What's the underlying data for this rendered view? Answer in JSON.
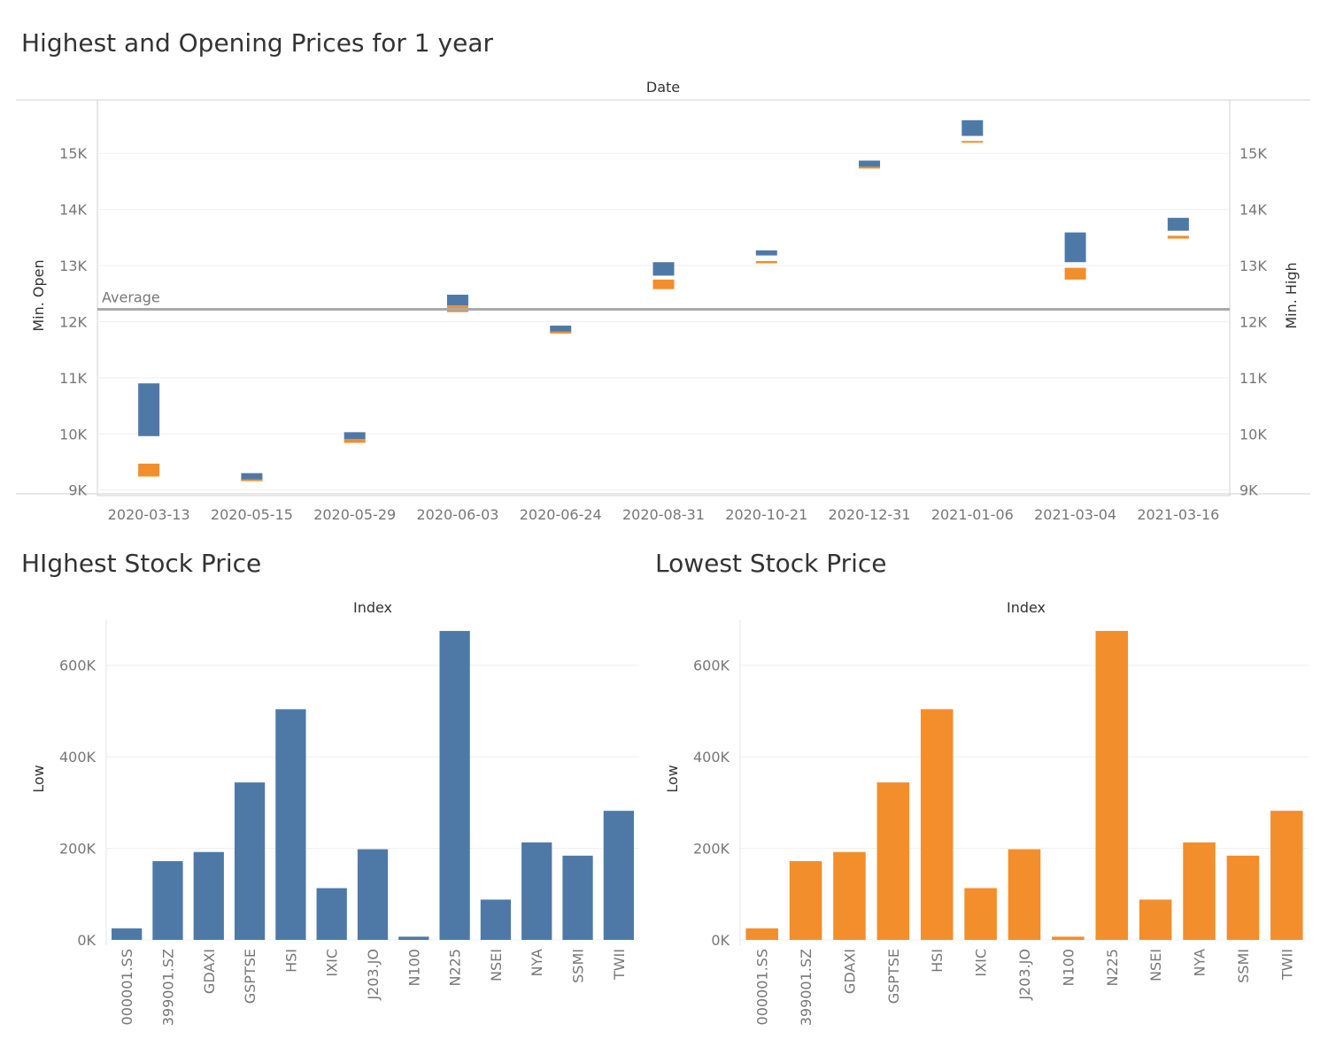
{
  "chart_data": [
    {
      "type": "gantt-bar",
      "title": "Highest and Opening Prices for 1 year",
      "xlabel": "Date",
      "ylabel_left": "Min. Open",
      "ylabel_right": "Min. High",
      "ylim": [
        8900,
        15950
      ],
      "yticks": [
        9000,
        10000,
        11000,
        12000,
        13000,
        14000,
        15000
      ],
      "ytick_labels": [
        "9K",
        "10K",
        "11K",
        "12K",
        "13K",
        "14K",
        "15K"
      ],
      "grid": true,
      "categories": [
        "2020-03-13",
        "2020-05-15",
        "2020-05-29",
        "2020-06-03",
        "2020-06-24",
        "2020-08-31",
        "2020-10-21",
        "2020-12-31",
        "2021-01-06",
        "2021-03-04",
        "2021-03-16"
      ],
      "series": [
        {
          "color": "#4e79a7",
          "ranges": [
            [
              9960,
              10900
            ],
            [
              9160,
              9300
            ],
            [
              9900,
              10030
            ],
            [
              12290,
              12480
            ],
            [
              11820,
              11930
            ],
            [
              12820,
              13060
            ],
            [
              13180,
              13270
            ],
            [
              14760,
              14870
            ],
            [
              15310,
              15590
            ],
            [
              13060,
              13590
            ],
            [
              13620,
              13850
            ]
          ]
        },
        {
          "color": "#f28e2b",
          "ranges": [
            [
              9240,
              9470
            ],
            [
              9160,
              9190
            ],
            [
              9840,
              9910
            ],
            [
              12170,
              12290
            ],
            [
              11790,
              11820
            ],
            [
              12580,
              12750
            ],
            [
              13040,
              13080
            ],
            [
              14730,
              14760
            ],
            [
              15190,
              15220
            ],
            [
              12750,
              12960
            ],
            [
              13480,
              13530
            ]
          ]
        }
      ],
      "reference_line": {
        "label": "Average",
        "value": 12220
      }
    },
    {
      "type": "bar",
      "title": "HIghest Stock Price",
      "xlabel": "Index",
      "ylabel": "Low",
      "color": "#4e79a7",
      "ylim": [
        0,
        700000
      ],
      "yticks": [
        0,
        200000,
        400000,
        600000
      ],
      "ytick_labels": [
        "0K",
        "200K",
        "400K",
        "600K"
      ],
      "grid": true,
      "categories": [
        "000001.SS",
        "399001.SZ",
        "GDAXI",
        "GSPTSE",
        "HSI",
        "IXIC",
        "J203.JO",
        "N100",
        "N225",
        "NSEI",
        "NYA",
        "SSMI",
        "TWII"
      ],
      "values": [
        25000,
        172000,
        192000,
        344000,
        504000,
        113000,
        198000,
        7000,
        675000,
        88000,
        213000,
        184000,
        282000
      ]
    },
    {
      "type": "bar",
      "title": "Lowest Stock Price",
      "xlabel": "Index",
      "ylabel": "Low",
      "color": "#f28e2b",
      "ylim": [
        0,
        700000
      ],
      "yticks": [
        0,
        200000,
        400000,
        600000
      ],
      "ytick_labels": [
        "0K",
        "200K",
        "400K",
        "600K"
      ],
      "grid": true,
      "categories": [
        "000001.SS",
        "399001.SZ",
        "GDAXI",
        "GSPTSE",
        "HSI",
        "IXIC",
        "J203.JO",
        "N100",
        "N225",
        "NSEI",
        "NYA",
        "SSMI",
        "TWII"
      ],
      "values": [
        25000,
        172000,
        192000,
        344000,
        504000,
        113000,
        198000,
        7000,
        675000,
        88000,
        213000,
        184000,
        282000
      ]
    }
  ]
}
